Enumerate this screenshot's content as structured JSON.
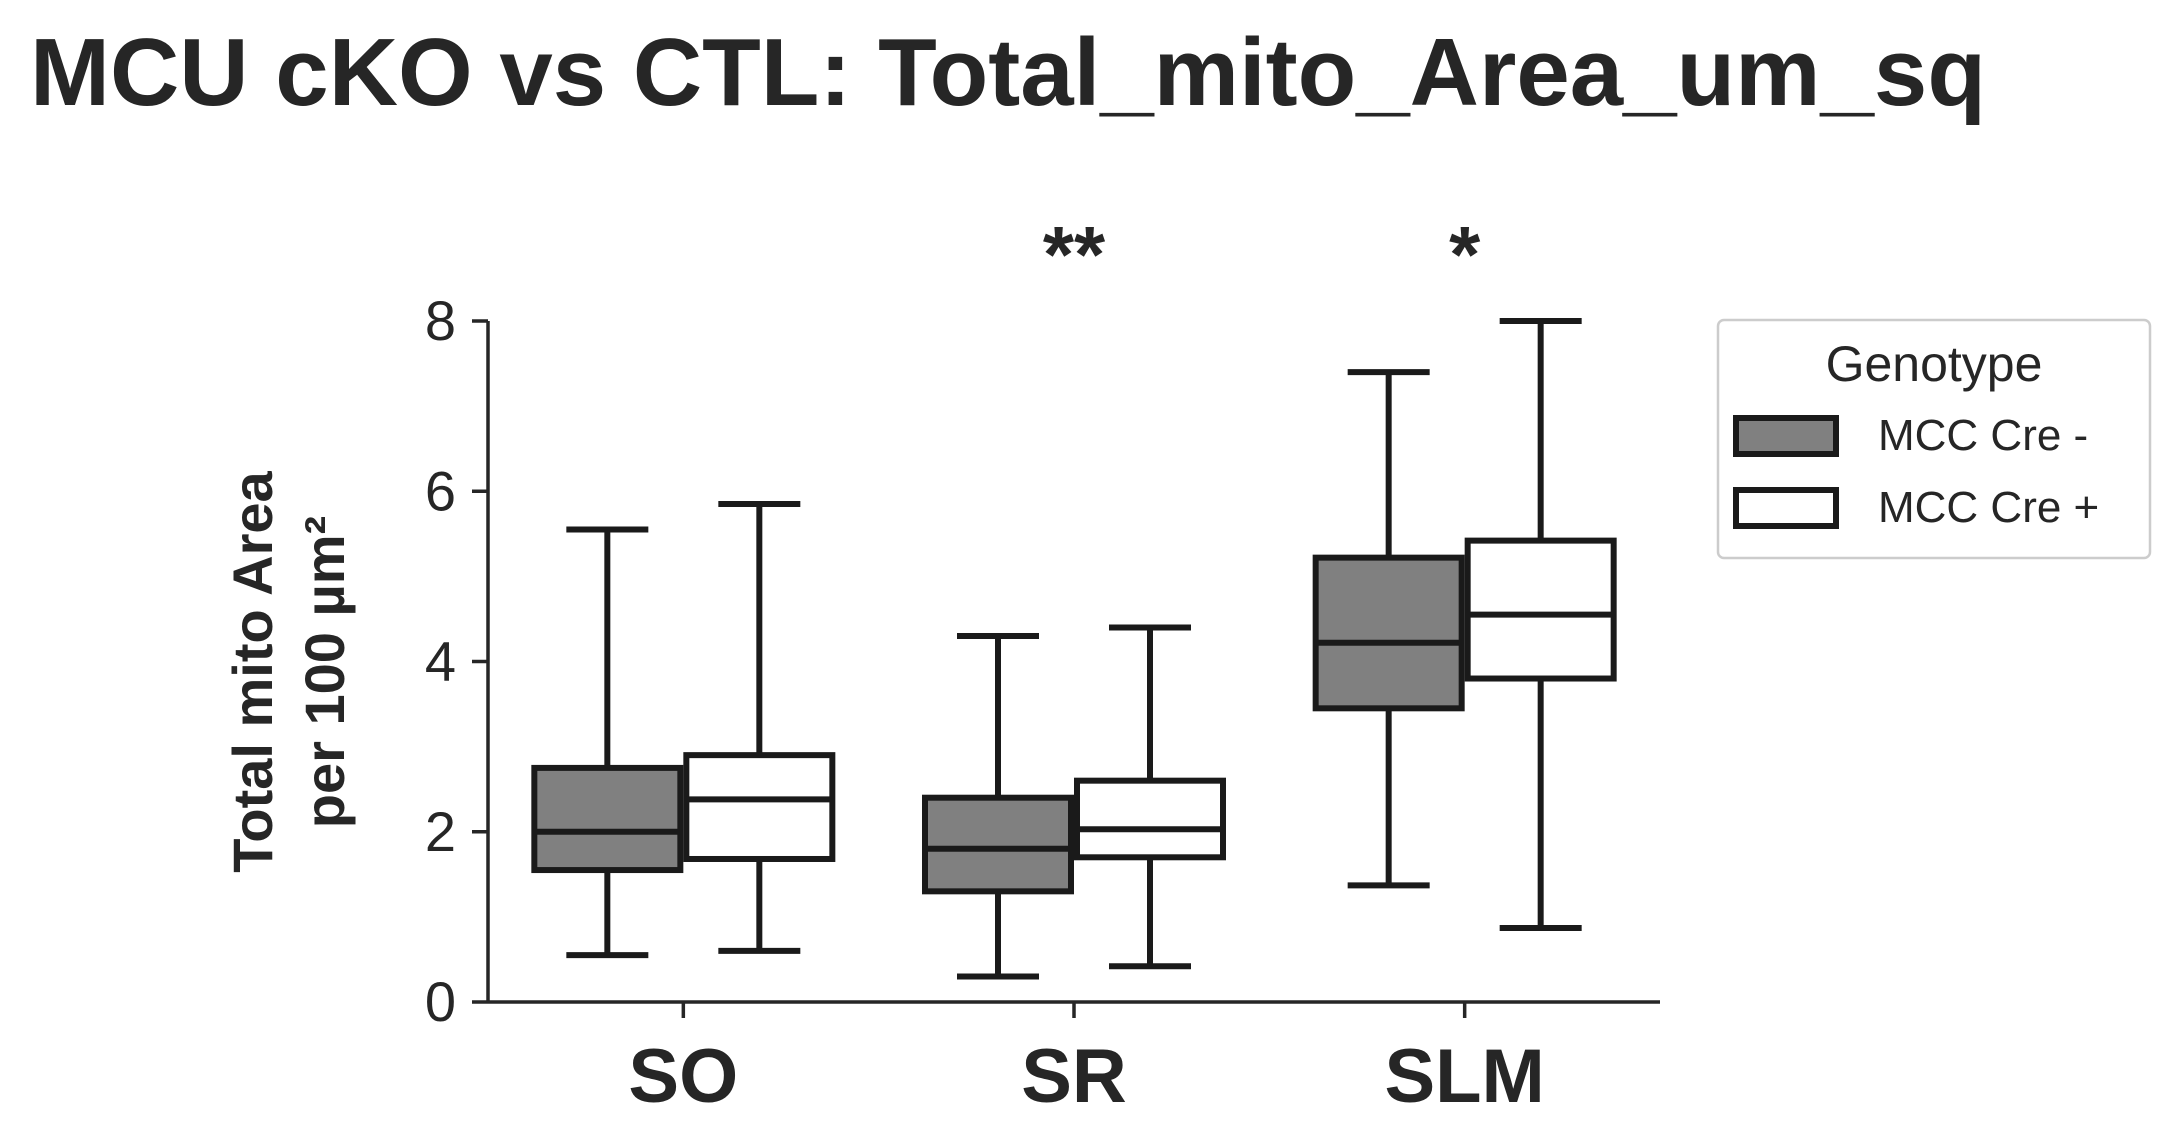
{
  "chart_data": {
    "type": "box",
    "title": "MCU cKO vs CTL: Total_mito_Area_um_sq",
    "ylabel_line1": "Total mito Area",
    "ylabel_line2": "per 100 µm²",
    "categories": [
      "SO",
      "SR",
      "SLM"
    ],
    "ylim": [
      0,
      8
    ],
    "yticks": [
      "0",
      "2",
      "4",
      "6",
      "8"
    ],
    "legend_title": "Genotype",
    "legend_position": "upper-right-outside",
    "significance": [
      "",
      "**",
      "*"
    ],
    "grid": false,
    "series": [
      {
        "name": "MCC Cre -",
        "color": "#808080",
        "boxes": [
          {
            "whisker_low": 0.55,
            "q1": 1.55,
            "median": 2.0,
            "q3": 2.75,
            "whisker_high": 5.55
          },
          {
            "whisker_low": 0.3,
            "q1": 1.3,
            "median": 1.8,
            "q3": 2.4,
            "whisker_high": 4.3
          },
          {
            "whisker_low": 1.37,
            "q1": 3.45,
            "median": 4.22,
            "q3": 5.22,
            "whisker_high": 7.4
          }
        ]
      },
      {
        "name": "MCC Cre +",
        "color": "#ffffff",
        "boxes": [
          {
            "whisker_low": 0.6,
            "q1": 1.68,
            "median": 2.38,
            "q3": 2.9,
            "whisker_high": 5.85
          },
          {
            "whisker_low": 0.42,
            "q1": 1.7,
            "median": 2.03,
            "q3": 2.6,
            "whisker_high": 4.4
          },
          {
            "whisker_low": 0.87,
            "q1": 3.8,
            "median": 4.55,
            "q3": 5.42,
            "whisker_high": 8.0
          }
        ]
      }
    ]
  }
}
